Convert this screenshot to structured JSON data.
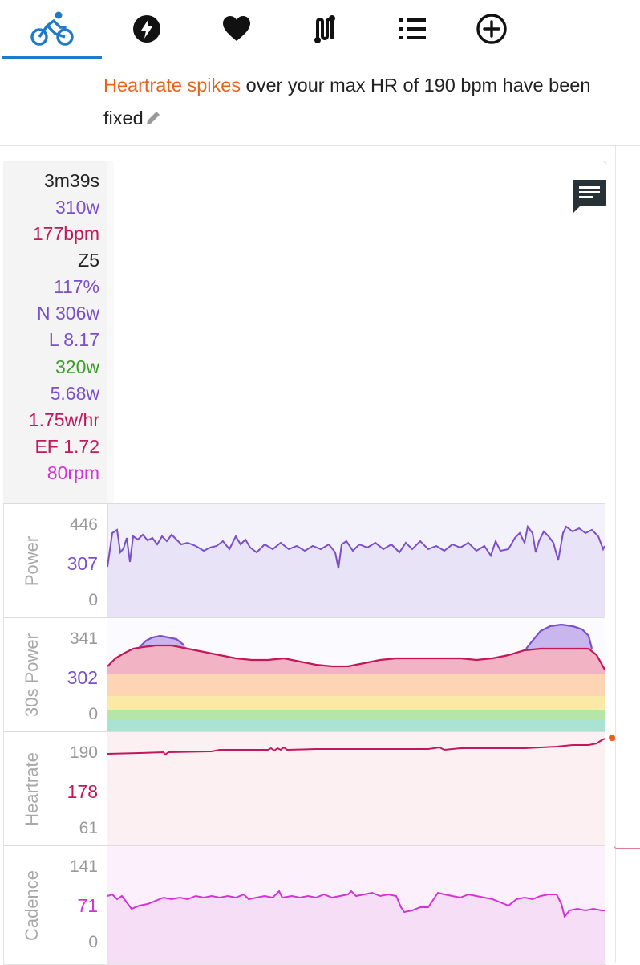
{
  "tabs": [
    {
      "name": "bike-icon",
      "active": true
    },
    {
      "name": "lightning-icon"
    },
    {
      "name": "heart-icon"
    },
    {
      "name": "route-icon"
    },
    {
      "name": "list-icon"
    },
    {
      "name": "add-circle-icon"
    }
  ],
  "notice": {
    "highlight": "Heartrate spikes",
    "text": " over your max HR of 190 bpm have been fixed"
  },
  "stats": {
    "duration": "3m39s",
    "power": "310w",
    "heartrate": "177bpm",
    "zone": "Z5",
    "intensity": "117%",
    "normalized": "N 306w",
    "load": "L 8.17",
    "threshold": "320w",
    "variability": "5.68w",
    "decoupling": "1.75w/hr",
    "efficiency": "EF 1.72",
    "cadence": "80rpm"
  },
  "colors": {
    "accent": "#1f7bc8",
    "power": "#7a4fc9",
    "heartrate": "#c2185b",
    "threshold": "#3a9a2a",
    "cadence": "#d631d6",
    "notice_highlight": "#e8631a"
  },
  "charts": {
    "power": {
      "title": "Power",
      "max": "446",
      "current": "307",
      "min": "0"
    },
    "power30": {
      "title": "30s Power",
      "max": "341",
      "current": "302",
      "min": "0"
    },
    "heartrate": {
      "title": "Heartrate",
      "max": "190",
      "current": "178",
      "min": "61"
    },
    "cadence": {
      "title": "Cadence",
      "max": "141",
      "current": "71",
      "min": "0"
    }
  }
}
